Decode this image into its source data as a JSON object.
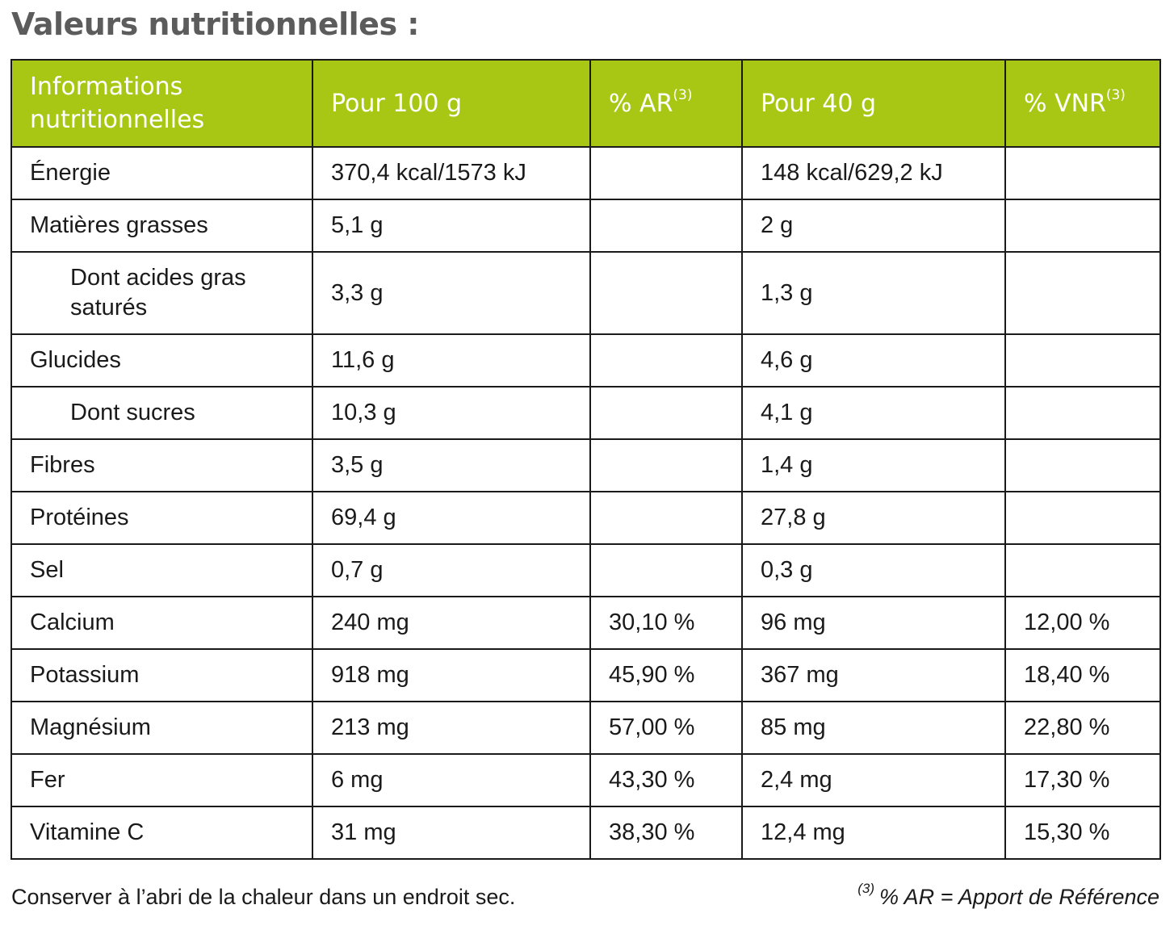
{
  "title": "Valeurs nutritionnelles :",
  "table": {
    "headers": {
      "col1": "Informations nutritionnelles",
      "col2": "Pour 100 g",
      "col3": "% AR",
      "col3_sup": "(3)",
      "col4": "Pour 40 g",
      "col5": "% VNR",
      "col5_sup": "(3)"
    },
    "rows": [
      {
        "name": "Énergie",
        "per100": "370,4 kcal/1573 kJ",
        "ar": "",
        "per40": "148 kcal/629,2 kJ",
        "vnr": ""
      },
      {
        "name": "Matières grasses",
        "per100": "5,1 g",
        "ar": "",
        "per40": "2 g",
        "vnr": ""
      },
      {
        "name": "Dont acides gras saturés",
        "per100": "3,3 g",
        "ar": "",
        "per40": "1,3 g",
        "vnr": ""
      },
      {
        "name": "Glucides",
        "per100": "11,6 g",
        "ar": "",
        "per40": "4,6 g",
        "vnr": ""
      },
      {
        "name": "Dont sucres",
        "per100": "10,3 g",
        "ar": "",
        "per40": "4,1 g",
        "vnr": ""
      },
      {
        "name": "Fibres",
        "per100": "3,5 g",
        "ar": "",
        "per40": "1,4 g",
        "vnr": ""
      },
      {
        "name": "Protéines",
        "per100": "69,4 g",
        "ar": "",
        "per40": "27,8 g",
        "vnr": ""
      },
      {
        "name": "Sel",
        "per100": "0,7 g",
        "ar": "",
        "per40": "0,3 g",
        "vnr": ""
      },
      {
        "name": "Calcium",
        "per100": "240 mg",
        "ar": "30,10 %",
        "per40": "96 mg",
        "vnr": "12,00 %"
      },
      {
        "name": "Potassium",
        "per100": "918 mg",
        "ar": "45,90 %",
        "per40": "367 mg",
        "vnr": "18,40 %"
      },
      {
        "name": "Magnésium",
        "per100": "213 mg",
        "ar": "57,00 %",
        "per40": "85 mg",
        "vnr": "22,80 %"
      },
      {
        "name": "Fer",
        "per100": "6 mg",
        "ar": "43,30 %",
        "per40": "2,4 mg",
        "vnr": "17,30 %"
      },
      {
        "name": "Vitamine C",
        "per100": "31 mg",
        "ar": "38,30 %",
        "per40": "12,4 mg",
        "vnr": "15,30 %"
      }
    ]
  },
  "footer": {
    "storage_note": "Conserver à l’abri de la chaleur dans un endroit sec.",
    "footnote_marker": "(3)",
    "footnote_text": "% AR = Apport de Référence"
  },
  "colors": {
    "header_bg": "#a8c714",
    "title": "#5c5c5c",
    "border": "#1a1a1a"
  }
}
